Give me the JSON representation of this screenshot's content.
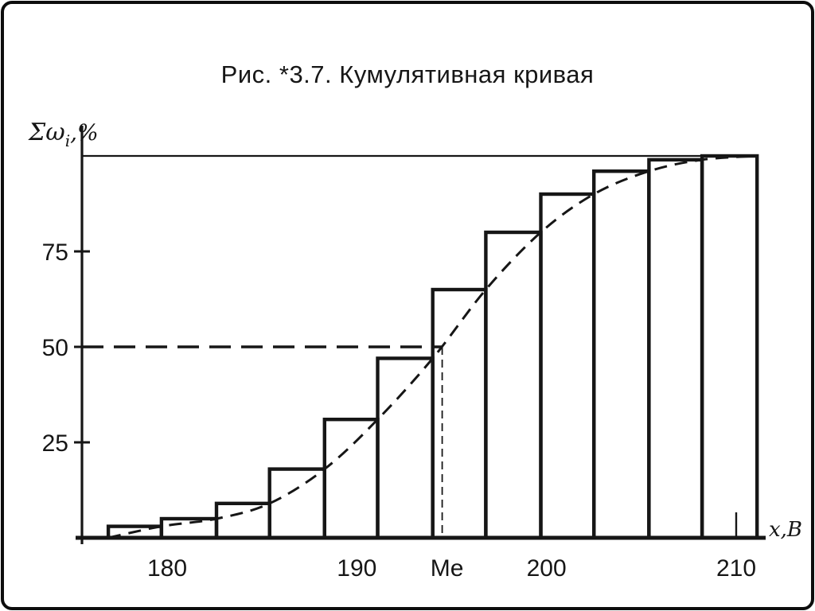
{
  "figure": {
    "title": "Рис. *3.7. Кумулятивная кривая",
    "background": "#ffffff",
    "frame_color": "#0d0d0d"
  },
  "chart_data": {
    "type": "line",
    "variant": "cumulative-frequency-ogive-with-step-histogram",
    "title": "Рис. *3.7. Кумулятивная кривая",
    "xlabel": "x,В",
    "ylabel": "Σωᵢ,%",
    "ylabel_parts": {
      "prefix": "Σω",
      "subscript": "i",
      "suffix": ",%"
    },
    "ink_color": "#161616",
    "xlim": [
      174,
      213
    ],
    "ylim": [
      0,
      104
    ],
    "grid": false,
    "legend": false,
    "y_ticks": [
      25,
      50,
      75
    ],
    "x_ticks": [
      180,
      190,
      200,
      210
    ],
    "top_reference_percent": 100,
    "bin_edges": [
      176.9,
      179.7,
      182.6,
      185.4,
      188.3,
      191.1,
      194.0,
      196.8,
      199.7,
      202.5,
      205.4,
      208.2,
      211.1
    ],
    "cumulative_percent": [
      3,
      5,
      9,
      18,
      31,
      47,
      65,
      80,
      90,
      96,
      99,
      100
    ],
    "median": {
      "label": "Me",
      "x": 194.5,
      "percent": 50
    }
  }
}
